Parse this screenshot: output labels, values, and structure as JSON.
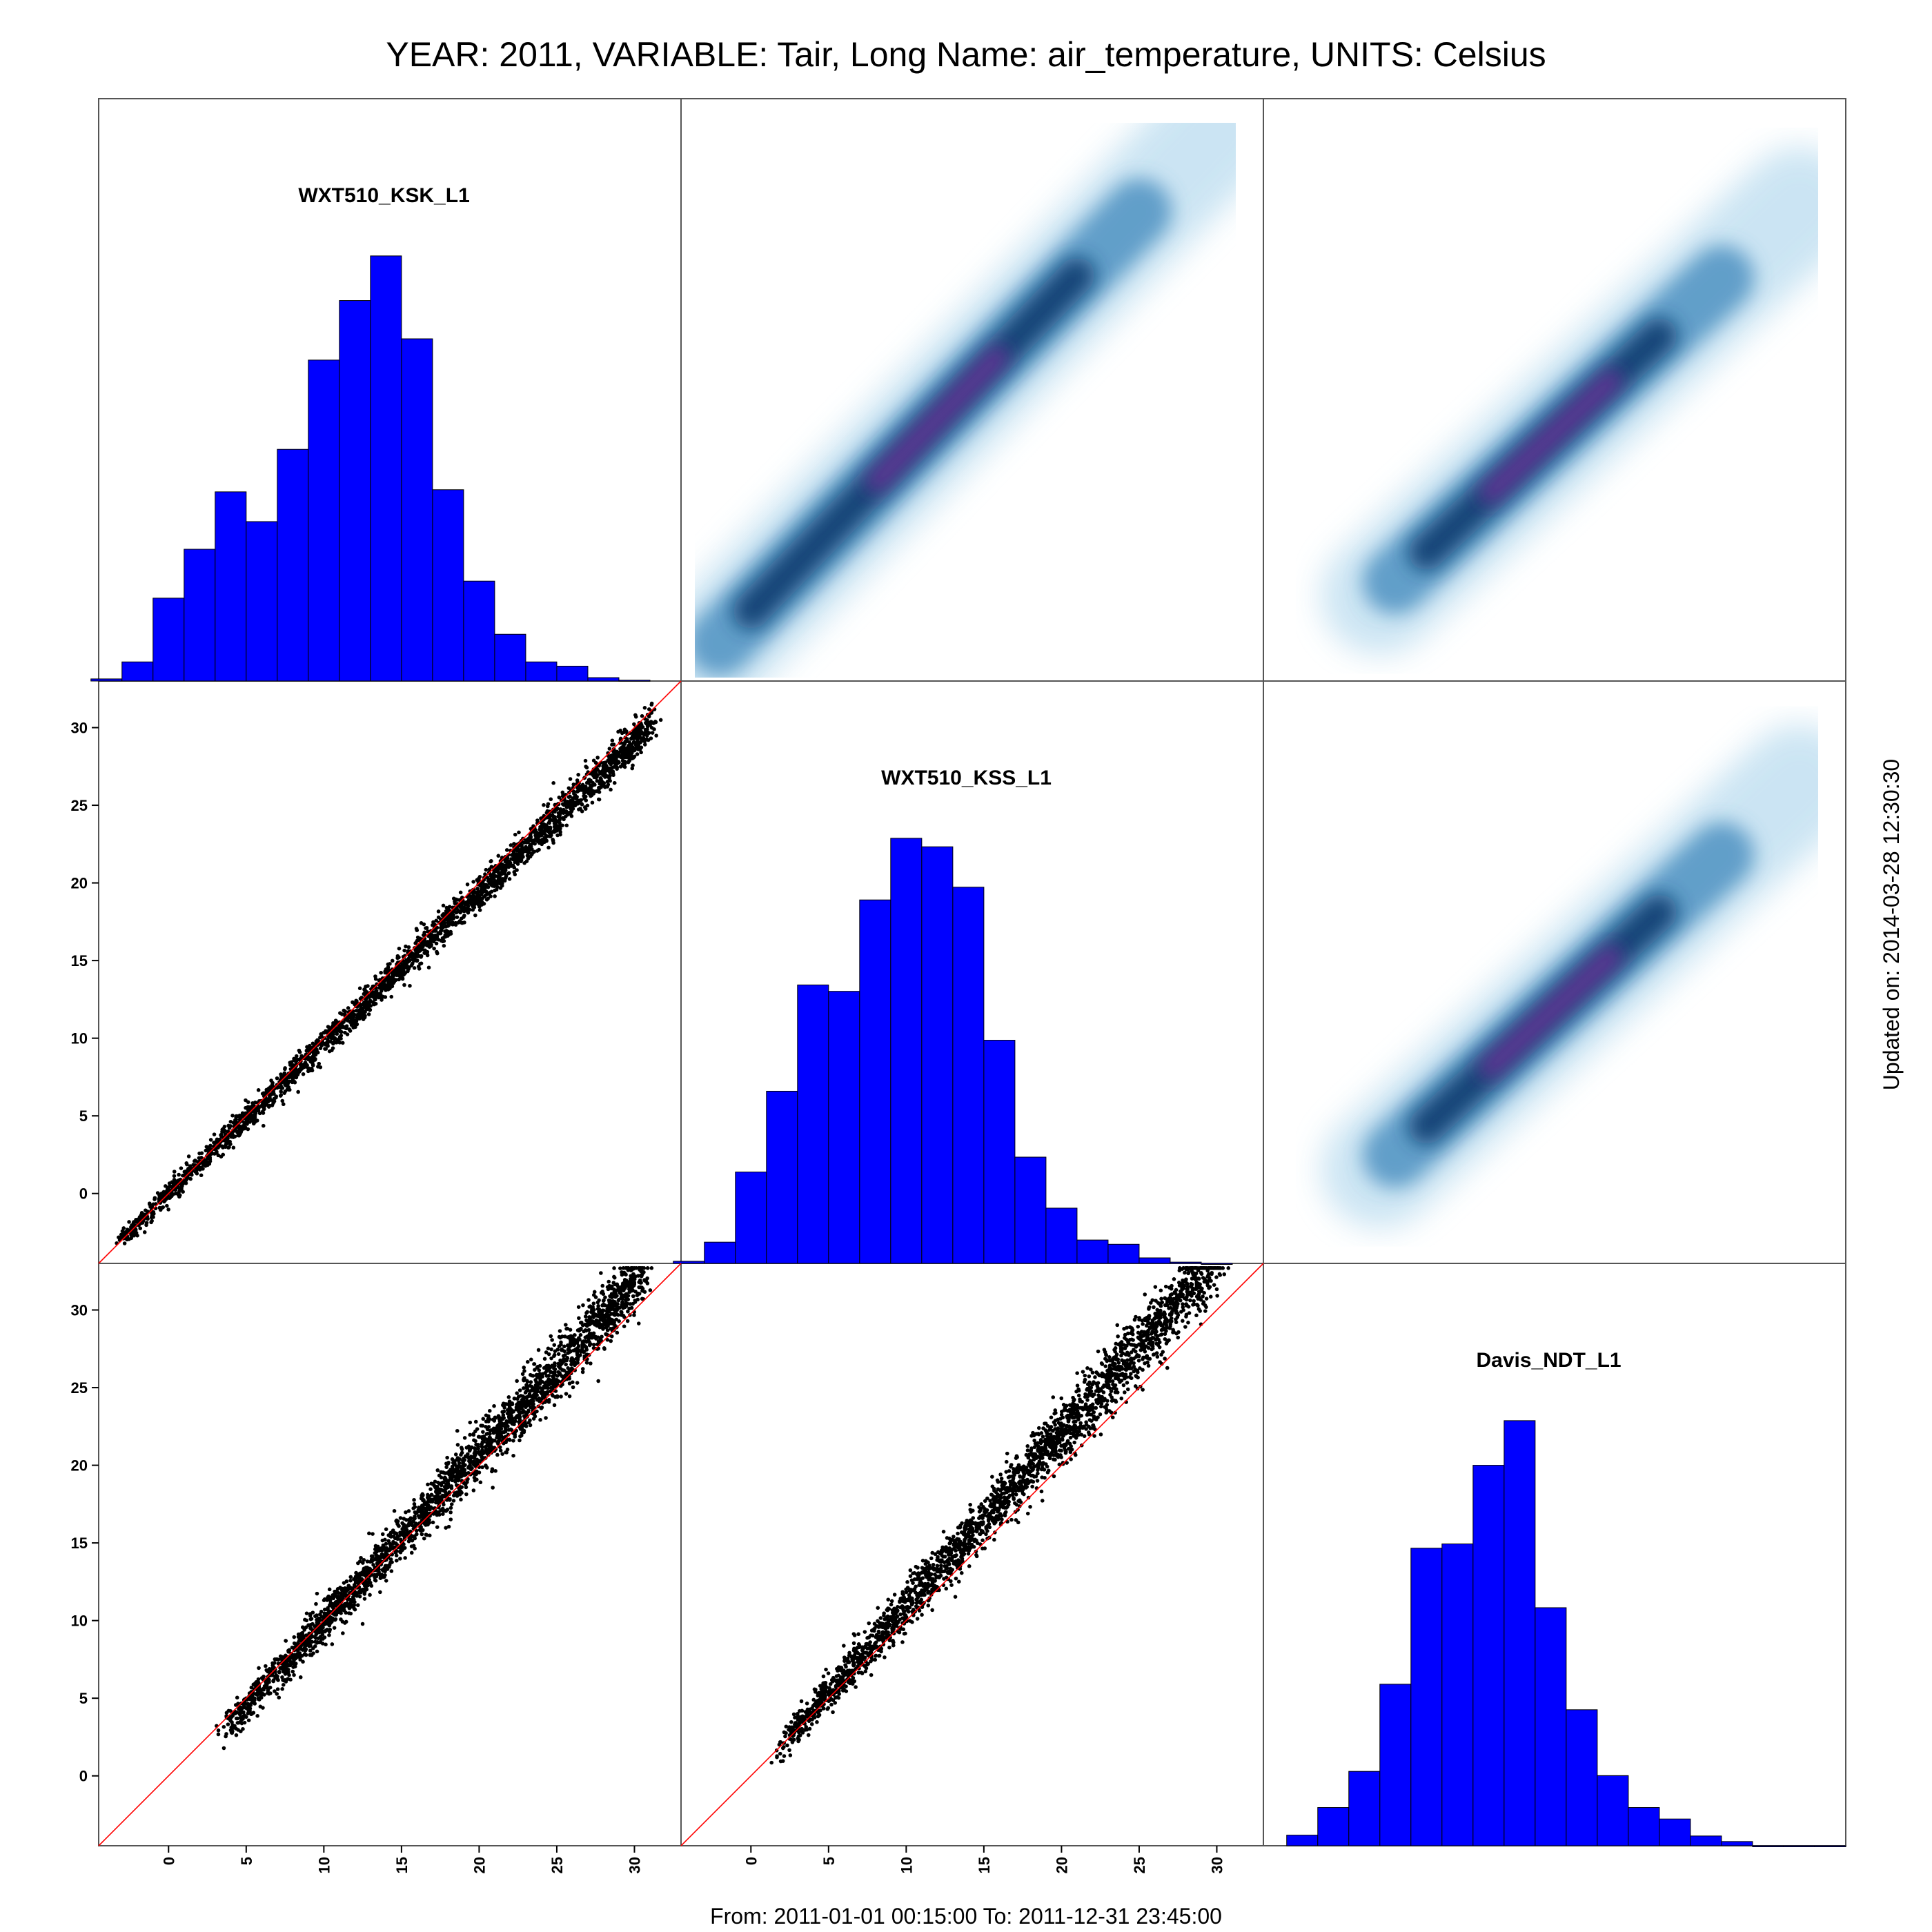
{
  "title": "YEAR: 2011, VARIABLE: Tair, Long Name: air_temperature, UNITS: Celsius",
  "footer": "From: 2011-01-01 00:15:00 To: 2011-12-31 23:45:00",
  "updated": "Updated on: 2014-03-28 12:30:30",
  "colors": {
    "hist_fill": "#0000ff",
    "identity_line": "#ff0000",
    "points": "#000000",
    "density_low": "#c6e2f2",
    "density_mid": "#0a3a6e",
    "density_high": "#7b2f9e"
  },
  "chart_data": {
    "type": "scatter-matrix",
    "variables": [
      "WXT510_KSK_L1",
      "WXT510_KSS_L1",
      "Davis_NDT_L1"
    ],
    "axis_range": [
      -4.5,
      33
    ],
    "tick_values": [
      0,
      5,
      10,
      15,
      20,
      25,
      30
    ],
    "tick_labels": [
      "0",
      "5",
      "10",
      "15",
      "20",
      "25",
      "30"
    ],
    "histograms": [
      {
        "variable": "WXT510_KSK_L1",
        "bin_edges": [
          -5,
          -3,
          -1,
          1,
          3,
          5,
          7,
          9,
          11,
          13,
          15,
          17,
          19,
          21,
          23,
          25,
          27,
          29,
          31
        ],
        "relative_heights": [
          0.005,
          0.045,
          0.195,
          0.31,
          0.445,
          0.375,
          0.545,
          0.755,
          0.895,
          1.0,
          0.805,
          0.45,
          0.235,
          0.11,
          0.045,
          0.035,
          0.008,
          0.002
        ]
      },
      {
        "variable": "WXT510_KSS_L1",
        "bin_edges": [
          -5,
          -3,
          -1,
          1,
          3,
          5,
          7,
          9,
          11,
          13,
          15,
          17,
          19,
          21,
          23,
          25,
          27,
          29,
          31
        ],
        "relative_heights": [
          0.005,
          0.05,
          0.215,
          0.405,
          0.655,
          0.64,
          0.855,
          1.0,
          0.98,
          0.885,
          0.525,
          0.25,
          0.13,
          0.055,
          0.045,
          0.013,
          0.003,
          0.0
        ]
      },
      {
        "variable": "Davis_NDT_L1",
        "bin_edges": [
          -3,
          -1,
          1,
          3,
          5,
          7,
          9,
          11,
          13,
          15,
          17,
          19,
          21,
          23,
          25,
          27,
          29,
          31,
          33
        ],
        "relative_heights": [
          0.025,
          0.09,
          0.175,
          0.38,
          0.7,
          0.71,
          0.895,
          1.0,
          0.56,
          0.32,
          0.165,
          0.09,
          0.063,
          0.023,
          0.01,
          0.0,
          0.0,
          0.0
        ]
      }
    ],
    "scatter_panels": [
      {
        "row": 1,
        "col": 0,
        "x_variable": "WXT510_KSK_L1",
        "y_variable": "WXT510_KSS_L1",
        "relation": {
          "x_range": [
            -3,
            31
          ],
          "slope": 0.97,
          "intercept": 0.0,
          "spread": 0.55
        }
      },
      {
        "row": 2,
        "col": 0,
        "x_variable": "WXT510_KSK_L1",
        "y_variable": "Davis_NDT_L1",
        "relation": {
          "x_range": [
            3.5,
            30.5
          ],
          "slope": 1.09,
          "intercept": -1.0,
          "spread": 0.9
        }
      },
      {
        "row": 2,
        "col": 1,
        "x_variable": "WXT510_KSS_L1",
        "y_variable": "Davis_NDT_L1",
        "relation": {
          "x_range": [
            2,
            30
          ],
          "slope": 1.12,
          "intercept": -0.3,
          "spread": 1.0
        }
      }
    ],
    "density_panels": [
      {
        "row": 0,
        "col": 1,
        "x_variable": "WXT510_KSS_L1",
        "y_variable": "WXT510_KSK_L1"
      },
      {
        "row": 0,
        "col": 2,
        "x_variable": "Davis_NDT_L1",
        "y_variable": "WXT510_KSK_L1"
      },
      {
        "row": 1,
        "col": 2,
        "x_variable": "Davis_NDT_L1",
        "y_variable": "WXT510_KSS_L1"
      }
    ],
    "identity_line": true,
    "grid": false,
    "legend": "none"
  }
}
